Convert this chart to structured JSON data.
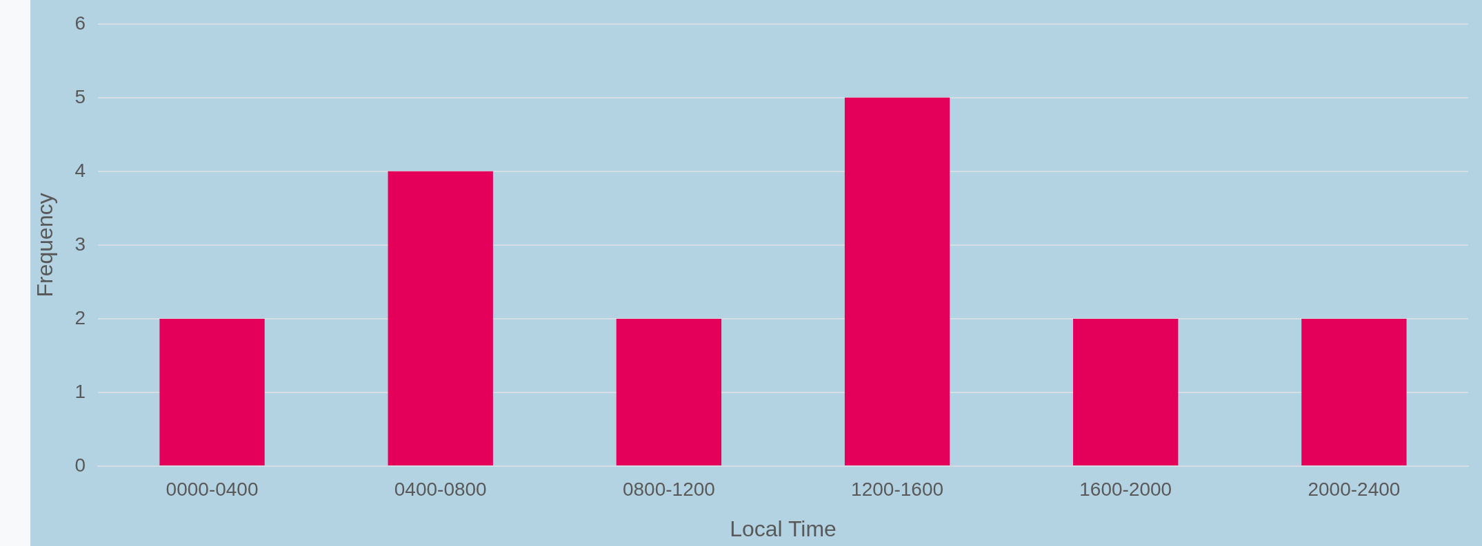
{
  "chart_data": {
    "type": "bar",
    "xlabel": "Local Time",
    "ylabel": "Frequency",
    "categories": [
      "0000-0400",
      "0400-0800",
      "0800-1200",
      "1200-1600",
      "1600-2000",
      "2000-2400"
    ],
    "values": [
      2,
      4,
      2,
      5,
      2,
      2
    ],
    "color": "#e4005a",
    "ylim": [
      0,
      6
    ],
    "yticks": [
      0,
      1,
      2,
      3,
      4,
      5,
      6
    ],
    "grid": "y",
    "legend": false
  }
}
